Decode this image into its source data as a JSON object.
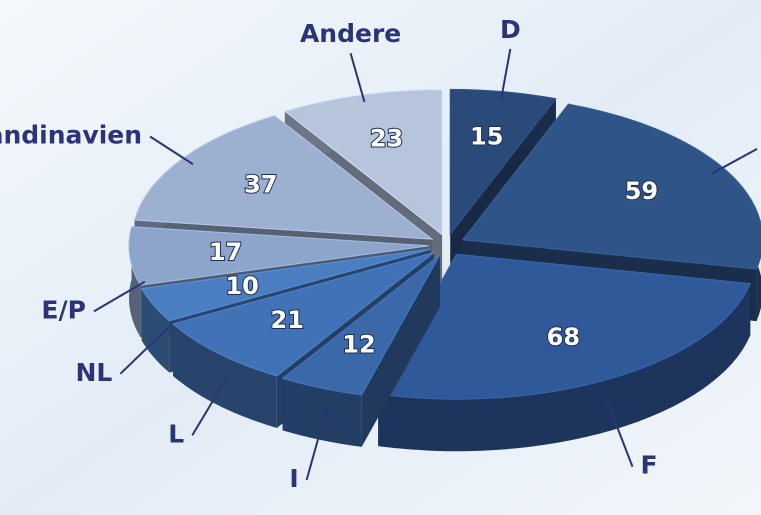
{
  "chart_data": {
    "type": "pie",
    "categories": [
      "D",
      "B",
      "F",
      "I",
      "L",
      "NL",
      "E/P",
      "Skandinavien",
      "Andere"
    ],
    "values": [
      15,
      59,
      68,
      12,
      21,
      10,
      17,
      37,
      23
    ],
    "colors": [
      "#2a4a7a",
      "#2f5488",
      "#30599a",
      "#3b68a8",
      "#4272b6",
      "#4b7ec0",
      "#8da4cb",
      "#9db0d0",
      "#b6c5dc"
    ]
  }
}
